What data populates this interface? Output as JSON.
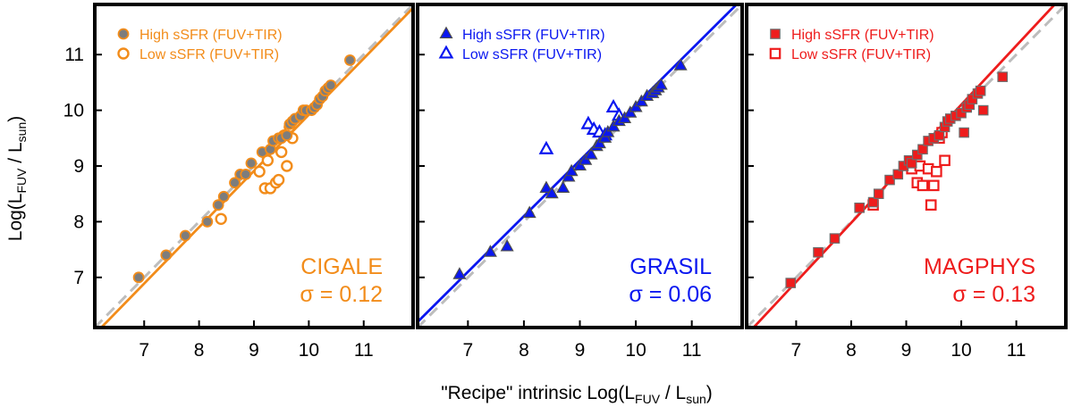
{
  "figure": {
    "xlabel_main": "\"Recipe\" intrinsic Log(L",
    "xlabel_sub1": "FUV",
    "xlabel_mid": " / L",
    "xlabel_sub2": "sun",
    "xlabel_end": ")",
    "ylabel_main": "Log(L",
    "ylabel_sub1": "FUV",
    "ylabel_mid": " / L",
    "ylabel_sub2": "sun",
    "ylabel_end": ")",
    "one_to_one_color": "#bdbdbd"
  },
  "chart_data": [
    {
      "type": "scatter",
      "title": "CIGALE",
      "sigma_label": "σ = 0.12",
      "color": "#f28c1a",
      "marker": "circle",
      "xlim": [
        6.1,
        11.9
      ],
      "ylim": [
        6.1,
        11.9
      ],
      "xticks": [
        7,
        8,
        9,
        10,
        11
      ],
      "yticks": [
        7,
        8,
        9,
        10,
        11
      ],
      "fit": {
        "slope": 1.01,
        "intercept": -0.18
      },
      "series": [
        {
          "name": "High sSFR (FUV+TIR)",
          "filled": true,
          "x": [
            6.9,
            7.4,
            7.75,
            8.15,
            8.35,
            8.45,
            8.65,
            8.75,
            8.85,
            8.95,
            9.15,
            9.3,
            9.35,
            9.45,
            9.5,
            9.6,
            9.65,
            9.7,
            9.75,
            9.85,
            9.9,
            9.95,
            10.05,
            10.1,
            10.15,
            10.2,
            10.25,
            10.3,
            10.35,
            10.4,
            10.75
          ],
          "y": [
            7.0,
            7.4,
            7.75,
            8.0,
            8.3,
            8.45,
            8.7,
            8.85,
            8.85,
            9.05,
            9.25,
            9.3,
            9.45,
            9.5,
            9.5,
            9.55,
            9.75,
            9.8,
            9.85,
            9.9,
            10.0,
            10.0,
            10.0,
            10.05,
            10.1,
            10.2,
            10.25,
            10.35,
            10.4,
            10.45,
            10.9
          ]
        },
        {
          "name": "Low sSFR (FUV+TIR)",
          "filled": false,
          "x": [
            8.4,
            9.1,
            9.2,
            9.25,
            9.3,
            9.4,
            9.45,
            9.5,
            9.55,
            9.6,
            9.65,
            9.7
          ],
          "y": [
            8.05,
            8.9,
            8.6,
            9.1,
            8.6,
            8.7,
            8.75,
            9.25,
            9.55,
            9.0,
            9.7,
            9.5
          ]
        }
      ]
    },
    {
      "type": "scatter",
      "title": "GRASIL",
      "sigma_label": "σ = 0.06",
      "color": "#0a17f0",
      "marker": "triangle",
      "xlim": [
        6.1,
        11.9
      ],
      "ylim": [
        6.1,
        11.9
      ],
      "xticks": [
        7,
        8,
        9,
        10,
        11
      ],
      "yticks": [
        7,
        8,
        9,
        10,
        11
      ],
      "fit": {
        "slope": 1.0,
        "intercept": 0.1
      },
      "series": [
        {
          "name": "High sSFR (FUV+TIR)",
          "filled": true,
          "x": [
            6.85,
            7.4,
            7.7,
            8.1,
            8.4,
            8.5,
            8.7,
            8.8,
            8.85,
            9.0,
            9.1,
            9.2,
            9.3,
            9.35,
            9.45,
            9.5,
            9.6,
            9.7,
            9.8,
            9.9,
            10.0,
            10.1,
            10.2,
            10.3,
            10.35,
            10.4,
            10.45,
            10.8
          ],
          "y": [
            7.05,
            7.45,
            7.55,
            8.15,
            8.6,
            8.5,
            8.6,
            8.8,
            8.9,
            9.0,
            9.1,
            9.2,
            9.35,
            9.4,
            9.5,
            9.6,
            9.7,
            9.8,
            9.85,
            9.95,
            10.05,
            10.15,
            10.25,
            10.3,
            10.35,
            10.4,
            10.45,
            10.8
          ]
        },
        {
          "name": "Low sSFR (FUV+TIR)",
          "filled": false,
          "x": [
            8.4,
            9.15,
            9.25,
            9.35,
            9.45,
            9.6,
            9.7
          ],
          "y": [
            9.3,
            9.75,
            9.65,
            9.6,
            9.55,
            10.05,
            9.9
          ]
        }
      ]
    },
    {
      "type": "scatter",
      "title": "MAGPHYS",
      "sigma_label": "σ = 0.13",
      "color": "#ee1c1c",
      "marker": "square",
      "xlim": [
        6.1,
        11.9
      ],
      "ylim": [
        6.1,
        11.9
      ],
      "xticks": [
        7,
        8,
        9,
        10,
        11
      ],
      "yticks": [
        7,
        8,
        9,
        10,
        11
      ],
      "fit": {
        "slope": 1.06,
        "intercept": -0.5
      },
      "series": [
        {
          "name": "High sSFR (FUV+TIR)",
          "filled": true,
          "x": [
            6.9,
            7.4,
            7.7,
            8.15,
            8.4,
            8.5,
            8.7,
            8.85,
            8.95,
            9.05,
            9.1,
            9.2,
            9.3,
            9.4,
            9.5,
            9.6,
            9.7,
            9.75,
            9.8,
            9.9,
            10.0,
            10.05,
            10.1,
            10.15,
            10.2,
            10.3,
            10.35,
            10.4,
            10.75
          ],
          "y": [
            6.9,
            7.45,
            7.7,
            8.25,
            8.35,
            8.5,
            8.75,
            8.85,
            9.0,
            9.1,
            9.05,
            9.2,
            9.3,
            9.45,
            9.5,
            9.55,
            9.7,
            9.8,
            9.85,
            9.9,
            9.95,
            9.6,
            10.05,
            10.1,
            10.2,
            10.3,
            10.35,
            10.0,
            10.6
          ]
        },
        {
          "name": "Low sSFR (FUV+TIR)",
          "filled": false,
          "x": [
            8.4,
            9.1,
            9.2,
            9.25,
            9.3,
            9.4,
            9.45,
            9.5,
            9.55,
            9.6,
            9.65,
            9.7
          ],
          "y": [
            8.3,
            8.95,
            8.7,
            9.0,
            8.65,
            8.95,
            8.3,
            8.65,
            8.9,
            9.5,
            9.6,
            9.1
          ]
        }
      ]
    }
  ]
}
